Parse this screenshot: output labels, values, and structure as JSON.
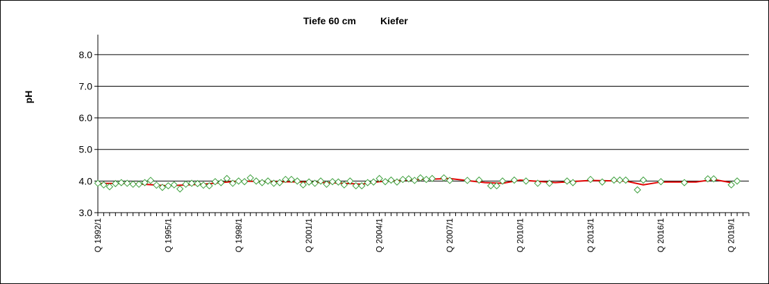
{
  "chart_data": {
    "type": "line",
    "title_left": "Tiefe  60 cm",
    "title_right": "Kiefer",
    "xlabel": "",
    "ylabel": "pH",
    "ylim": [
      3.0,
      8.5
    ],
    "yticks": [
      "3.0",
      "4.0",
      "5.0",
      "6.0",
      "7.0",
      "8.0"
    ],
    "grid": true,
    "x_tick_labels": [
      "Q 1992/1",
      "Q 1995/1",
      "Q 1998/1",
      "Q 2001/1",
      "Q 2004/1",
      "Q 2007/1",
      "Q 2010/1",
      "Q 2013/1",
      "Q 2016/1",
      "Q 2019/1"
    ],
    "x_tick_label_index": [
      0,
      12,
      24,
      36,
      48,
      60,
      72,
      84,
      96,
      108
    ],
    "x_range": [
      0,
      111
    ],
    "series": [
      {
        "kind": "points",
        "marker": "diamond",
        "color": "#3a9e3a",
        "points": [
          [
            0,
            3.93
          ],
          [
            1,
            3.88
          ],
          [
            2,
            3.82
          ],
          [
            3,
            3.92
          ],
          [
            4,
            3.95
          ],
          [
            5,
            3.93
          ],
          [
            6,
            3.9
          ],
          [
            7,
            3.9
          ],
          [
            8,
            3.95
          ],
          [
            9,
            4.02
          ],
          [
            10,
            3.87
          ],
          [
            11,
            3.8
          ],
          [
            12,
            3.85
          ],
          [
            13,
            3.88
          ],
          [
            14,
            3.75
          ],
          [
            15,
            3.9
          ],
          [
            16,
            3.93
          ],
          [
            17,
            3.92
          ],
          [
            18,
            3.87
          ],
          [
            19,
            3.85
          ],
          [
            20,
            3.98
          ],
          [
            21,
            3.95
          ],
          [
            22,
            4.08
          ],
          [
            23,
            3.93
          ],
          [
            24,
            4.0
          ],
          [
            25,
            3.98
          ],
          [
            26,
            4.1
          ],
          [
            27,
            4.0
          ],
          [
            28,
            3.95
          ],
          [
            29,
            4.0
          ],
          [
            30,
            3.93
          ],
          [
            31,
            3.95
          ],
          [
            32,
            4.05
          ],
          [
            33,
            4.05
          ],
          [
            34,
            4.0
          ],
          [
            35,
            3.88
          ],
          [
            36,
            3.97
          ],
          [
            37,
            3.93
          ],
          [
            38,
            4.0
          ],
          [
            39,
            3.9
          ],
          [
            40,
            3.98
          ],
          [
            41,
            3.97
          ],
          [
            42,
            3.88
          ],
          [
            43,
            4.0
          ],
          [
            44,
            3.85
          ],
          [
            45,
            3.85
          ],
          [
            46,
            3.95
          ],
          [
            47,
            3.97
          ],
          [
            48,
            4.08
          ],
          [
            49,
            3.98
          ],
          [
            50,
            4.03
          ],
          [
            51,
            3.97
          ],
          [
            52,
            4.05
          ],
          [
            53,
            4.07
          ],
          [
            54,
            4.02
          ],
          [
            55,
            4.1
          ],
          [
            56,
            4.05
          ],
          [
            57,
            4.08
          ],
          [
            59,
            4.1
          ],
          [
            60,
            4.02
          ],
          [
            63,
            4.02
          ],
          [
            65,
            4.03
          ],
          [
            67,
            3.85
          ],
          [
            68,
            3.85
          ],
          [
            69,
            4.0
          ],
          [
            71,
            4.03
          ],
          [
            73,
            4.0
          ],
          [
            75,
            3.93
          ],
          [
            77,
            3.93
          ],
          [
            80,
            4.0
          ],
          [
            81,
            3.95
          ],
          [
            84,
            4.05
          ],
          [
            86,
            3.97
          ],
          [
            88,
            4.03
          ],
          [
            89,
            4.03
          ],
          [
            90,
            4.03
          ],
          [
            92,
            3.72
          ],
          [
            93,
            4.03
          ],
          [
            96,
            3.98
          ],
          [
            100,
            3.95
          ],
          [
            104,
            4.07
          ],
          [
            105,
            4.07
          ],
          [
            108,
            3.88
          ],
          [
            109,
            4.0
          ]
        ]
      },
      {
        "kind": "line",
        "color": "#e00000",
        "points": [
          [
            0,
            3.93
          ],
          [
            6,
            3.92
          ],
          [
            12,
            3.85
          ],
          [
            18,
            3.9
          ],
          [
            24,
            4.0
          ],
          [
            30,
            3.98
          ],
          [
            36,
            3.97
          ],
          [
            42,
            3.93
          ],
          [
            45,
            3.9
          ],
          [
            48,
            3.98
          ],
          [
            54,
            4.04
          ],
          [
            60,
            4.08
          ],
          [
            66,
            3.95
          ],
          [
            69,
            3.93
          ],
          [
            72,
            4.03
          ],
          [
            78,
            3.95
          ],
          [
            84,
            4.02
          ],
          [
            90,
            4.0
          ],
          [
            93,
            3.88
          ],
          [
            96,
            3.97
          ],
          [
            102,
            3.97
          ],
          [
            105,
            4.05
          ],
          [
            108,
            3.95
          ]
        ]
      }
    ]
  }
}
